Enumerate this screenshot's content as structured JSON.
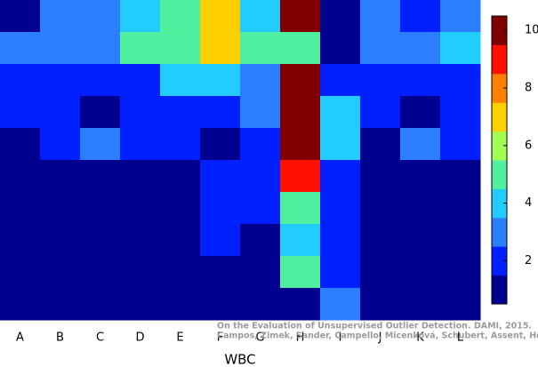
{
  "chart_data": {
    "type": "heatmap",
    "x": [
      "A",
      "B",
      "C",
      "D",
      "E",
      "F",
      "G",
      "H",
      "I",
      "J",
      "K",
      "L"
    ],
    "xlabel": "WBC",
    "values": [
      [
        1,
        3,
        3,
        4,
        5,
        7,
        4,
        10,
        1,
        3,
        2,
        3
      ],
      [
        3,
        3,
        3,
        5,
        5,
        7,
        5,
        5,
        1,
        3,
        3,
        4
      ],
      [
        2,
        2,
        2,
        2,
        4,
        4,
        3,
        10,
        2,
        2,
        2,
        2
      ],
      [
        2,
        2,
        1,
        2,
        2,
        2,
        3,
        10,
        4,
        2,
        1,
        2
      ],
      [
        1,
        2,
        3,
        2,
        2,
        1,
        2,
        10,
        4,
        1,
        3,
        2
      ],
      [
        1,
        1,
        1,
        1,
        1,
        2,
        2,
        9,
        2,
        1,
        1,
        1
      ],
      [
        1,
        1,
        1,
        1,
        1,
        2,
        2,
        5,
        2,
        1,
        1,
        1
      ],
      [
        1,
        1,
        1,
        1,
        1,
        2,
        1,
        4,
        2,
        1,
        1,
        1
      ],
      [
        1,
        1,
        1,
        1,
        1,
        1,
        1,
        5,
        2,
        1,
        1,
        1
      ],
      [
        1,
        1,
        1,
        1,
        1,
        1,
        1,
        1,
        3,
        1,
        1,
        1
      ]
    ],
    "colors": [
      "#00008f",
      "#0020ff",
      "#2b7fff",
      "#22ccff",
      "#50f0a0",
      "#a0ff50",
      "#ffd000",
      "#ff8000",
      "#ff1000",
      "#800000"
    ],
    "clim": [
      0.5,
      10.5
    ],
    "cticks": [
      2,
      4,
      6,
      8,
      10
    ],
    "annotations": [
      "On the Evaluation of Unsupervised Outlier Detection. DAMI, 2015.",
      "Campos, Zimek, Sander, Campello, Micenková, Schubert, Assent, Houle"
    ]
  }
}
